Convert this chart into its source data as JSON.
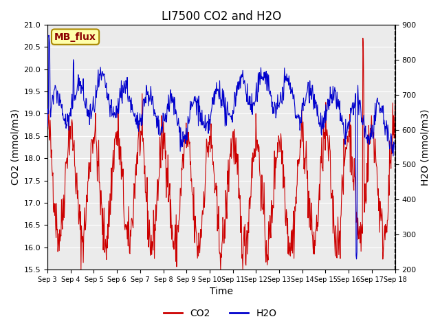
{
  "title": "LI7500 CO2 and H2O",
  "xlabel": "Time",
  "ylabel_left": "CO2 (mmol/m3)",
  "ylabel_right": "H2O (mmol/m3)",
  "co2_ylim": [
    15.5,
    21.0
  ],
  "h2o_ylim": [
    200,
    900
  ],
  "co2_yticks": [
    15.5,
    16.0,
    16.5,
    17.0,
    17.5,
    18.0,
    18.5,
    19.0,
    19.5,
    20.0,
    20.5,
    21.0
  ],
  "h2o_yticks": [
    200,
    300,
    400,
    500,
    600,
    700,
    800,
    900
  ],
  "xtick_labels": [
    "Sep 3",
    "Sep 4",
    "Sep 5",
    "Sep 6",
    "Sep 7",
    "Sep 8",
    "Sep 9",
    "Sep 10",
    "Sep 11",
    "Sep 12",
    "Sep 13",
    "Sep 14",
    "Sep 15",
    "Sep 16",
    "Sep 17",
    "Sep 18"
  ],
  "xtick_positions": [
    0,
    1,
    2,
    3,
    4,
    5,
    6,
    7,
    8,
    9,
    10,
    11,
    12,
    13,
    14,
    15
  ],
  "co2_color": "#cc0000",
  "h2o_color": "#0000cc",
  "annotation_text": "MB_flux",
  "annotation_bg": "#ffffaa",
  "annotation_border": "#aa8800",
  "plot_bg": "#ebebeb",
  "title_fontsize": 12,
  "axis_label_fontsize": 10,
  "tick_fontsize": 8,
  "legend_fontsize": 10
}
